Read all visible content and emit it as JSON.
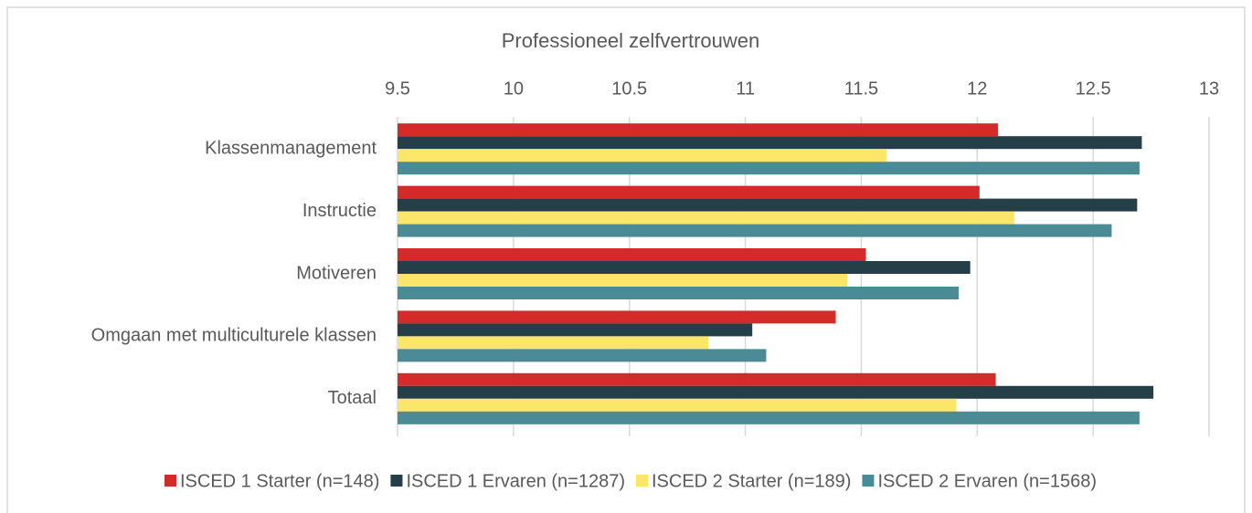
{
  "chart_data": {
    "type": "hbar",
    "x_axis_label": "Professioneel zelfvertrouwen",
    "categories": [
      "Klassenmanagement",
      "Instructie",
      "Motiveren",
      "Omgaan met multiculturele klassen",
      "Totaal"
    ],
    "series": [
      {
        "name": "ISCED 1 Starter (n=148)",
        "color": "#d42a2a",
        "values": [
          12.09,
          12.01,
          11.52,
          11.39,
          12.08
        ]
      },
      {
        "name": "ISCED 1 Ervaren (n=1287)",
        "color": "#243f47",
        "values": [
          12.71,
          12.69,
          11.97,
          11.03,
          12.76
        ]
      },
      {
        "name": "ISCED 2 Starter (n=189)",
        "color": "#fbe66a",
        "values": [
          11.61,
          12.16,
          11.44,
          10.84,
          11.91
        ]
      },
      {
        "name": "ISCED 2 Ervaren (n=1568)",
        "color": "#4a8b96",
        "values": [
          12.7,
          12.58,
          11.92,
          11.09,
          12.7
        ]
      }
    ],
    "xlim": [
      9.5,
      13
    ],
    "xticks": [
      9.5,
      10,
      10.5,
      11,
      11.5,
      12,
      12.5,
      13
    ],
    "grid": true,
    "legend": "bottom"
  }
}
